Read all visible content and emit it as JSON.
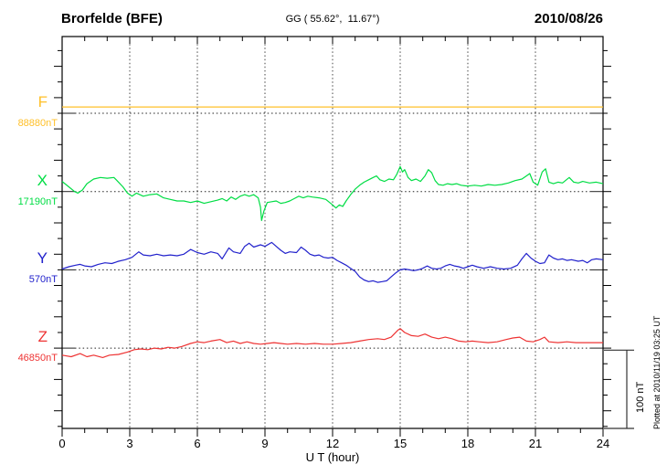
{
  "header": {
    "station": "Brorfelde (BFE)",
    "coords": "GG ( 55.62°,  11.67°)",
    "date": "2010/08/26"
  },
  "plotted_at": "Plotted at 2010/11/19 03:25 UT",
  "scale_bar": {
    "label": "100 nT",
    "span_nT": 100
  },
  "colors": {
    "F": "#ffc02a",
    "X": "#00dd44",
    "Y": "#2222cc",
    "Z": "#ee3333",
    "frame": "#000000",
    "grid": "#444444",
    "baseline": "#222222"
  },
  "chart_data": {
    "type": "line",
    "xlabel": "U T (hour)",
    "x_range": [
      0,
      24
    ],
    "x_ticks": [
      0,
      3,
      6,
      9,
      12,
      15,
      18,
      21,
      24
    ],
    "grid_hours": [
      3,
      6,
      9,
      12,
      15,
      18,
      21
    ],
    "y_tick_step_nT": 20,
    "baseline_spacing_nT": 100,
    "points_format": "[hour_UT, offset_nT_from_base]",
    "series": [
      {
        "name": "F",
        "value_label": "88880nT",
        "base_nT": 88880,
        "color": "#ffc02a",
        "points": [
          [
            0,
            8
          ],
          [
            24,
            8
          ]
        ]
      },
      {
        "name": "X",
        "value_label": "17190nT",
        "base_nT": 17190,
        "color": "#00dd44",
        "points": [
          [
            0,
            13
          ],
          [
            0.3,
            6
          ],
          [
            0.55,
            0
          ],
          [
            0.7,
            -2
          ],
          [
            0.9,
            2
          ],
          [
            1.1,
            10
          ],
          [
            1.4,
            16
          ],
          [
            1.7,
            18
          ],
          [
            2.0,
            17
          ],
          [
            2.3,
            18
          ],
          [
            2.5,
            12
          ],
          [
            2.7,
            6
          ],
          [
            2.9,
            -2
          ],
          [
            3.1,
            -6
          ],
          [
            3.3,
            -2
          ],
          [
            3.6,
            -6
          ],
          [
            3.9,
            -4
          ],
          [
            4.2,
            -3
          ],
          [
            4.5,
            -8
          ],
          [
            4.8,
            -10
          ],
          [
            5.1,
            -12
          ],
          [
            5.4,
            -12
          ],
          [
            5.7,
            -14
          ],
          [
            6.0,
            -12
          ],
          [
            6.3,
            -15
          ],
          [
            6.6,
            -13
          ],
          [
            6.9,
            -11
          ],
          [
            7.1,
            -9
          ],
          [
            7.3,
            -12
          ],
          [
            7.5,
            -7
          ],
          [
            7.7,
            -10
          ],
          [
            7.9,
            -6
          ],
          [
            8.1,
            -4
          ],
          [
            8.3,
            -6
          ],
          [
            8.5,
            -4
          ],
          [
            8.7,
            -8
          ],
          [
            8.8,
            -20
          ],
          [
            8.85,
            -37
          ],
          [
            8.95,
            -25
          ],
          [
            9.1,
            -14
          ],
          [
            9.3,
            -13
          ],
          [
            9.5,
            -12
          ],
          [
            9.7,
            -15
          ],
          [
            9.9,
            -14
          ],
          [
            10.1,
            -12
          ],
          [
            10.3,
            -9
          ],
          [
            10.5,
            -6
          ],
          [
            10.7,
            -8
          ],
          [
            10.9,
            -6
          ],
          [
            11.1,
            -7
          ],
          [
            11.4,
            -8
          ],
          [
            11.7,
            -10
          ],
          [
            12.0,
            -17
          ],
          [
            12.15,
            -21
          ],
          [
            12.3,
            -17
          ],
          [
            12.45,
            -19
          ],
          [
            12.6,
            -12
          ],
          [
            12.8,
            -4
          ],
          [
            13.0,
            3
          ],
          [
            13.2,
            8
          ],
          [
            13.4,
            12
          ],
          [
            13.6,
            15
          ],
          [
            13.8,
            18
          ],
          [
            13.95,
            20
          ],
          [
            14.1,
            15
          ],
          [
            14.3,
            13
          ],
          [
            14.5,
            16
          ],
          [
            14.7,
            15
          ],
          [
            14.85,
            22
          ],
          [
            15.0,
            32
          ],
          [
            15.1,
            25
          ],
          [
            15.2,
            28
          ],
          [
            15.35,
            18
          ],
          [
            15.5,
            14
          ],
          [
            15.7,
            16
          ],
          [
            15.9,
            13
          ],
          [
            16.1,
            20
          ],
          [
            16.25,
            28
          ],
          [
            16.4,
            24
          ],
          [
            16.55,
            14
          ],
          [
            16.7,
            9
          ],
          [
            16.9,
            8
          ],
          [
            17.1,
            10
          ],
          [
            17.3,
            9
          ],
          [
            17.5,
            10
          ],
          [
            17.7,
            8
          ],
          [
            18.0,
            7
          ],
          [
            18.3,
            8
          ],
          [
            18.6,
            7
          ],
          [
            18.9,
            9
          ],
          [
            19.2,
            8
          ],
          [
            19.5,
            9
          ],
          [
            19.8,
            11
          ],
          [
            20.1,
            14
          ],
          [
            20.4,
            16
          ],
          [
            20.6,
            20
          ],
          [
            20.75,
            23
          ],
          [
            20.9,
            12
          ],
          [
            21.1,
            8
          ],
          [
            21.3,
            25
          ],
          [
            21.45,
            29
          ],
          [
            21.6,
            12
          ],
          [
            21.8,
            10
          ],
          [
            22.0,
            12
          ],
          [
            22.2,
            11
          ],
          [
            22.5,
            18
          ],
          [
            22.7,
            12
          ],
          [
            22.9,
            11
          ],
          [
            23.1,
            13
          ],
          [
            23.4,
            11
          ],
          [
            23.7,
            12
          ],
          [
            24.0,
            10
          ]
        ]
      },
      {
        "name": "Y",
        "value_label": "570nT",
        "base_nT": 570,
        "color": "#2222cc",
        "points": [
          [
            0,
            1
          ],
          [
            0.3,
            4
          ],
          [
            0.6,
            6
          ],
          [
            0.8,
            7
          ],
          [
            1.0,
            5
          ],
          [
            1.3,
            4
          ],
          [
            1.6,
            7
          ],
          [
            1.9,
            9
          ],
          [
            2.2,
            8
          ],
          [
            2.5,
            11
          ],
          [
            2.8,
            13
          ],
          [
            3.1,
            16
          ],
          [
            3.4,
            23
          ],
          [
            3.6,
            19
          ],
          [
            3.9,
            18
          ],
          [
            4.2,
            20
          ],
          [
            4.5,
            18
          ],
          [
            4.8,
            19
          ],
          [
            5.1,
            18
          ],
          [
            5.4,
            20
          ],
          [
            5.7,
            26
          ],
          [
            6.0,
            22
          ],
          [
            6.3,
            20
          ],
          [
            6.6,
            23
          ],
          [
            6.9,
            21
          ],
          [
            7.1,
            14
          ],
          [
            7.4,
            28
          ],
          [
            7.6,
            23
          ],
          [
            7.9,
            21
          ],
          [
            8.1,
            30
          ],
          [
            8.3,
            34
          ],
          [
            8.5,
            29
          ],
          [
            8.8,
            32
          ],
          [
            9.0,
            30
          ],
          [
            9.3,
            35
          ],
          [
            9.5,
            30
          ],
          [
            9.7,
            25
          ],
          [
            9.9,
            21
          ],
          [
            10.1,
            23
          ],
          [
            10.4,
            22
          ],
          [
            10.6,
            29
          ],
          [
            10.8,
            25
          ],
          [
            11.0,
            20
          ],
          [
            11.2,
            18
          ],
          [
            11.4,
            19
          ],
          [
            11.6,
            16
          ],
          [
            11.8,
            15
          ],
          [
            12.0,
            16
          ],
          [
            12.2,
            12
          ],
          [
            12.4,
            9
          ],
          [
            12.6,
            6
          ],
          [
            12.8,
            2
          ],
          [
            13.0,
            -2
          ],
          [
            13.2,
            -9
          ],
          [
            13.4,
            -13
          ],
          [
            13.6,
            -15
          ],
          [
            13.8,
            -14
          ],
          [
            14.0,
            -16
          ],
          [
            14.2,
            -15
          ],
          [
            14.4,
            -14
          ],
          [
            14.6,
            -9
          ],
          [
            14.8,
            -4
          ],
          [
            15.0,
            0
          ],
          [
            15.2,
            1
          ],
          [
            15.4,
            0
          ],
          [
            15.6,
            -1
          ],
          [
            15.8,
            0
          ],
          [
            16.0,
            2
          ],
          [
            16.2,
            5
          ],
          [
            16.4,
            2
          ],
          [
            16.6,
            1
          ],
          [
            16.8,
            2
          ],
          [
            17.0,
            5
          ],
          [
            17.2,
            7
          ],
          [
            17.4,
            5
          ],
          [
            17.6,
            4
          ],
          [
            17.8,
            2
          ],
          [
            18.0,
            4
          ],
          [
            18.2,
            6
          ],
          [
            18.4,
            4
          ],
          [
            18.7,
            2
          ],
          [
            19.0,
            4
          ],
          [
            19.3,
            2
          ],
          [
            19.6,
            1
          ],
          [
            19.9,
            2
          ],
          [
            20.2,
            6
          ],
          [
            20.4,
            14
          ],
          [
            20.6,
            21
          ],
          [
            20.8,
            15
          ],
          [
            21.0,
            11
          ],
          [
            21.2,
            8
          ],
          [
            21.4,
            9
          ],
          [
            21.6,
            19
          ],
          [
            21.8,
            15
          ],
          [
            22.0,
            13
          ],
          [
            22.2,
            14
          ],
          [
            22.4,
            12
          ],
          [
            22.6,
            13
          ],
          [
            22.9,
            11
          ],
          [
            23.1,
            12
          ],
          [
            23.3,
            9
          ],
          [
            23.5,
            13
          ],
          [
            23.7,
            14
          ],
          [
            24.0,
            13
          ]
        ]
      },
      {
        "name": "Z",
        "value_label": "46850nT",
        "base_nT": 46850,
        "color": "#ee3333",
        "points": [
          [
            0,
            -9
          ],
          [
            0.4,
            -11
          ],
          [
            0.8,
            -7
          ],
          [
            1.1,
            -11
          ],
          [
            1.4,
            -9
          ],
          [
            1.8,
            -12
          ],
          [
            2.1,
            -9
          ],
          [
            2.5,
            -8
          ],
          [
            2.9,
            -5
          ],
          [
            3.2,
            -2
          ],
          [
            3.5,
            -1
          ],
          [
            3.8,
            -2
          ],
          [
            4.1,
            0
          ],
          [
            4.4,
            -1
          ],
          [
            4.7,
            1
          ],
          [
            5.0,
            0
          ],
          [
            5.3,
            2
          ],
          [
            5.7,
            6
          ],
          [
            6.0,
            8
          ],
          [
            6.3,
            7
          ],
          [
            6.6,
            9
          ],
          [
            7.0,
            11
          ],
          [
            7.3,
            7
          ],
          [
            7.6,
            9
          ],
          [
            7.9,
            6
          ],
          [
            8.2,
            8
          ],
          [
            8.5,
            6
          ],
          [
            8.8,
            5
          ],
          [
            9.1,
            6
          ],
          [
            9.4,
            7
          ],
          [
            9.7,
            6
          ],
          [
            10.0,
            5
          ],
          [
            10.4,
            6
          ],
          [
            10.8,
            5
          ],
          [
            11.2,
            6
          ],
          [
            11.6,
            5
          ],
          [
            12.0,
            5
          ],
          [
            12.4,
            6
          ],
          [
            12.8,
            7
          ],
          [
            13.2,
            9
          ],
          [
            13.6,
            11
          ],
          [
            14.0,
            12
          ],
          [
            14.3,
            11
          ],
          [
            14.6,
            14
          ],
          [
            14.9,
            23
          ],
          [
            15.0,
            25
          ],
          [
            15.2,
            20
          ],
          [
            15.5,
            16
          ],
          [
            15.8,
            15
          ],
          [
            16.1,
            18
          ],
          [
            16.4,
            14
          ],
          [
            16.7,
            12
          ],
          [
            17.0,
            14
          ],
          [
            17.3,
            12
          ],
          [
            17.6,
            9
          ],
          [
            17.9,
            8
          ],
          [
            18.2,
            9
          ],
          [
            18.5,
            8
          ],
          [
            18.9,
            7
          ],
          [
            19.3,
            8
          ],
          [
            19.7,
            11
          ],
          [
            20.0,
            13
          ],
          [
            20.3,
            14
          ],
          [
            20.6,
            9
          ],
          [
            20.9,
            8
          ],
          [
            21.2,
            11
          ],
          [
            21.4,
            14
          ],
          [
            21.6,
            8
          ],
          [
            22.0,
            7
          ],
          [
            22.4,
            8
          ],
          [
            22.8,
            7
          ],
          [
            23.2,
            7
          ],
          [
            23.6,
            7
          ],
          [
            24.0,
            7
          ]
        ]
      }
    ]
  }
}
